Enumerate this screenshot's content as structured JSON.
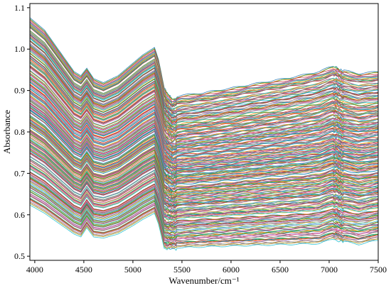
{
  "chart_data": {
    "type": "line",
    "title": "",
    "xlabel": "Wavenumber/cm⁻¹",
    "ylabel": "Absorbance",
    "xlim": [
      3950,
      7500
    ],
    "ylim": [
      0.49,
      1.11
    ],
    "xticks": [
      4000,
      4500,
      5000,
      5500,
      6000,
      6500,
      7000,
      7500
    ],
    "yticks": [
      0.5,
      0.6,
      0.7,
      0.8,
      0.9,
      1.0,
      1.1
    ],
    "xtick_labels": [
      "4000",
      "4500",
      "5000",
      "5500",
      "6000",
      "6500",
      "7000",
      "7500"
    ],
    "ytick_labels": [
      "0.5",
      "0.6",
      "0.7",
      "0.8",
      "0.9",
      "1.0",
      "1.1"
    ],
    "grid": false,
    "legend": "none",
    "series_count": 300,
    "x": [
      3950,
      4100,
      4250,
      4400,
      4470,
      4530,
      4600,
      4700,
      4850,
      5000,
      5100,
      5220,
      5260,
      5320,
      5400,
      5500,
      5700,
      6000,
      6300,
      6600,
      6900,
      7000,
      7070,
      7150,
      7300,
      7500
    ],
    "reference_profiles": [
      {
        "name": "",
        "values": [
          1.075,
          1.045,
          0.995,
          0.945,
          0.935,
          0.953,
          0.928,
          0.918,
          0.935,
          0.965,
          0.985,
          1.003,
          0.975,
          0.905,
          0.882,
          0.888,
          0.893,
          0.905,
          0.918,
          0.93,
          0.945,
          0.955,
          0.96,
          0.948,
          0.94,
          0.945
        ]
      },
      {
        "name": "",
        "values": [
          0.625,
          0.605,
          0.58,
          0.555,
          0.548,
          0.57,
          0.548,
          0.545,
          0.555,
          0.575,
          0.59,
          0.605,
          0.58,
          0.52,
          0.522,
          0.522,
          0.524,
          0.526,
          0.528,
          0.53,
          0.532,
          0.54,
          0.545,
          0.537,
          0.53,
          0.54
        ]
      }
    ],
    "colors": [
      "#1f77b4",
      "#ff7f0e",
      "#2ca02c",
      "#d62728",
      "#9467bd",
      "#8c564b",
      "#e377c2",
      "#7f7f7f",
      "#bcbd22",
      "#17becf"
    ]
  }
}
